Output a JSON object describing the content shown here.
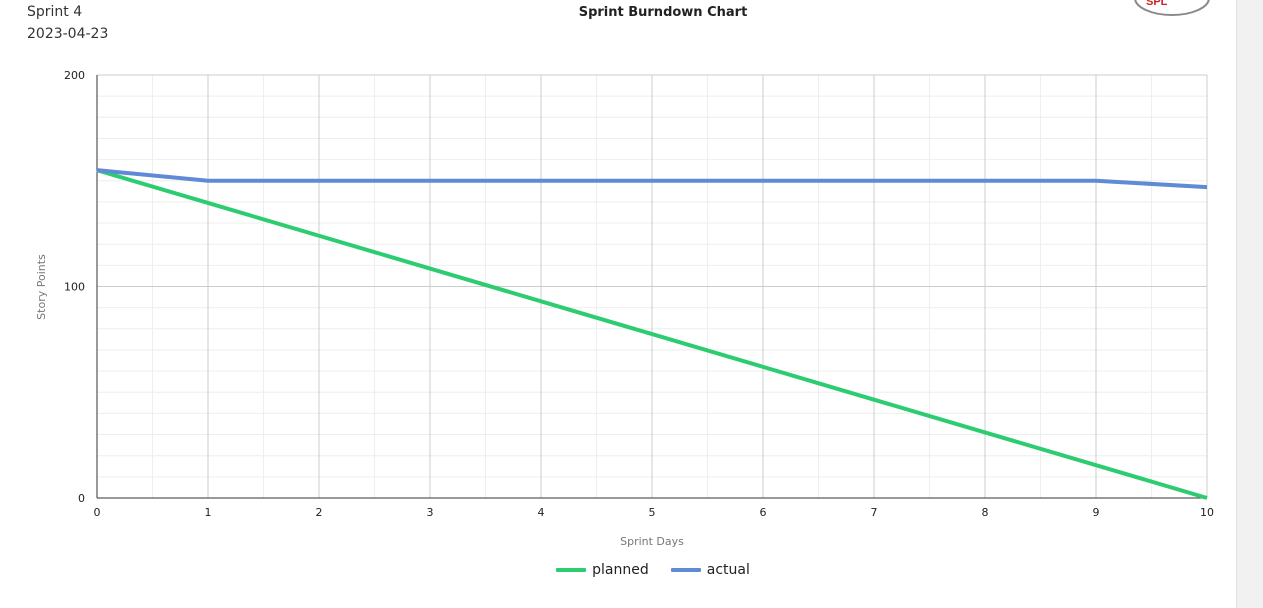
{
  "header": {
    "sprint_name": "Sprint 4",
    "sprint_date": "2023-04-23"
  },
  "logo": {
    "name": "company-logo",
    "text": "SPL"
  },
  "chart_data": {
    "type": "line",
    "title": "Sprint Burndown Chart",
    "xlabel": "Sprint Days",
    "ylabel": "Story Points",
    "x": [
      0,
      1,
      2,
      3,
      4,
      5,
      6,
      7,
      8,
      9,
      10
    ],
    "xlim": [
      0,
      10
    ],
    "ylim": [
      0,
      200
    ],
    "yticks": [
      0,
      100,
      200
    ],
    "xticks": [
      0,
      1,
      2,
      3,
      4,
      5,
      6,
      7,
      8,
      9,
      10
    ],
    "grid": true,
    "legend_position": "bottom",
    "series": [
      {
        "name": "planned",
        "color": "#2ecc71",
        "values": [
          155,
          139.5,
          124,
          108.5,
          93,
          77.5,
          62,
          46.5,
          31,
          15.5,
          0
        ]
      },
      {
        "name": "actual",
        "color": "#5f8ad6",
        "values": [
          155,
          150,
          150,
          150,
          150,
          150,
          150,
          150,
          150,
          150,
          147
        ]
      }
    ]
  }
}
